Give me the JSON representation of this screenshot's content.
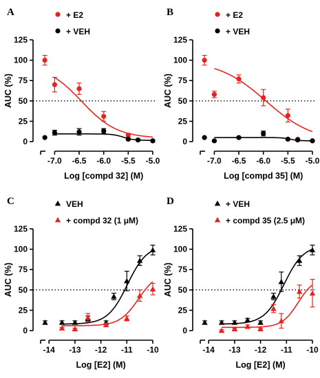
{
  "chart_data": [
    {
      "panel": "A",
      "type": "scatter",
      "title": "",
      "xlabel": "Log [compd 32] (M)",
      "ylabel": "AUC (%)",
      "xlim": [
        -7.3,
        -5.0
      ],
      "ylim": [
        -5,
        125
      ],
      "x_ticks": [
        "-7.0",
        "-6.5",
        "-6.0",
        "-5.5",
        "-5.0"
      ],
      "y_ticks": [
        "0",
        "25",
        "50",
        "75",
        "100",
        "125"
      ],
      "reference_line": 50,
      "legend_position": "top-left",
      "series": [
        {
          "name": "+ E2",
          "color": "#e8231f",
          "marker": "circle",
          "points": [
            {
              "x": -7.2,
              "y": 100,
              "err": 6
            },
            {
              "x": -7.0,
              "y": 70,
              "err": 9
            },
            {
              "x": -6.5,
              "y": 65,
              "err": 7
            },
            {
              "x": -6.0,
              "y": 31,
              "err": 6
            },
            {
              "x": -5.5,
              "y": 8,
              "err": 2
            },
            {
              "x": -5.3,
              "y": 2,
              "err": 1
            },
            {
              "x": -5.0,
              "y": 1,
              "err": 1
            }
          ],
          "fit": {
            "bottom": 4,
            "top": 95,
            "logEC50": -6.45,
            "hill": 1.2,
            "xstart": -7.0,
            "xend": -5.0
          }
        },
        {
          "name": "+ VEH",
          "color": "#000000",
          "marker": "circle",
          "points": [
            {
              "x": -7.2,
              "y": 5,
              "err": 0
            },
            {
              "x": -7.0,
              "y": 11,
              "err": 3
            },
            {
              "x": -6.5,
              "y": 12,
              "err": 4
            },
            {
              "x": -6.0,
              "y": 13,
              "err": 3
            },
            {
              "x": -5.5,
              "y": 3,
              "err": 1
            },
            {
              "x": -5.3,
              "y": 2,
              "err": 1
            },
            {
              "x": -5.0,
              "y": 1,
              "err": 1
            }
          ],
          "fit": {
            "bottom": 1.5,
            "top": 9.5,
            "logEC50": -5.6,
            "hill": 4,
            "xstart": -7.0,
            "xend": -5.0
          }
        }
      ]
    },
    {
      "panel": "B",
      "type": "scatter",
      "title": "",
      "xlabel": "Log [compd 35] (M)",
      "ylabel": "AUC (%)",
      "xlim": [
        -7.3,
        -5.0
      ],
      "ylim": [
        -5,
        125
      ],
      "x_ticks": [
        "-7.0",
        "-6.5",
        "-6.0",
        "-5.5",
        "-5.0"
      ],
      "y_ticks": [
        "0",
        "25",
        "50",
        "75",
        "100",
        "125"
      ],
      "reference_line": 50,
      "legend_position": "top-left",
      "series": [
        {
          "name": "+ E2",
          "color": "#e8231f",
          "marker": "circle",
          "points": [
            {
              "x": -7.2,
              "y": 100,
              "err": 6
            },
            {
              "x": -7.0,
              "y": 58,
              "err": 4
            },
            {
              "x": -6.5,
              "y": 77,
              "err": 5
            },
            {
              "x": -6.0,
              "y": 54,
              "err": 10
            },
            {
              "x": -5.5,
              "y": 32,
              "err": 8
            },
            {
              "x": -5.3,
              "y": 3,
              "err": 1
            },
            {
              "x": -5.0,
              "y": 1,
              "err": 1
            }
          ],
          "fit": {
            "bottom": 0,
            "top": 100,
            "logEC50": -5.95,
            "hill": 0.9,
            "xstart": -7.0,
            "xend": -5.0
          }
        },
        {
          "name": "+ VEH",
          "color": "#000000",
          "marker": "circle",
          "points": [
            {
              "x": -7.2,
              "y": 5,
              "err": 0
            },
            {
              "x": -7.0,
              "y": 1,
              "err": 1
            },
            {
              "x": -6.5,
              "y": 5,
              "err": 1
            },
            {
              "x": -6.0,
              "y": 10,
              "err": 3
            },
            {
              "x": -5.5,
              "y": 3,
              "err": 1
            },
            {
              "x": -5.3,
              "y": 2,
              "err": 1
            },
            {
              "x": -5.0,
              "y": 1,
              "err": 1
            }
          ],
          "fit": {
            "bottom": 1,
            "top": 5,
            "logEC50": -5.45,
            "hill": 5,
            "xstart": -7.0,
            "xend": -5.0
          }
        }
      ]
    },
    {
      "panel": "C",
      "type": "scatter",
      "title": "",
      "xlabel": "Log [E2] (M)",
      "ylabel": "AUC (%)",
      "xlim": [
        -14.35,
        -10
      ],
      "ylim": [
        -5,
        125
      ],
      "x_ticks": [
        "-14",
        "-13",
        "-12",
        "-11",
        "-10"
      ],
      "y_ticks": [
        "0",
        "25",
        "50",
        "75",
        "100",
        "125"
      ],
      "reference_line": 50,
      "legend_position": "top-left",
      "series": [
        {
          "name": "VEH",
          "color": "#000000",
          "marker": "triangle",
          "points": [
            {
              "x": -14.15,
              "y": 10,
              "err": 2
            },
            {
              "x": -13.5,
              "y": 10,
              "err": 2
            },
            {
              "x": -13.0,
              "y": 10,
              "err": 2
            },
            {
              "x": -12.5,
              "y": 15,
              "err": 3
            },
            {
              "x": -11.8,
              "y": 10,
              "err": 2
            },
            {
              "x": -11.5,
              "y": 42,
              "err": 4
            },
            {
              "x": -11.0,
              "y": 61,
              "err": 12
            },
            {
              "x": -10.5,
              "y": 86,
              "err": 6
            },
            {
              "x": -10.0,
              "y": 99,
              "err": 6
            }
          ],
          "fit": {
            "bottom": 8,
            "top": 105,
            "logEC50": -10.98,
            "hill": 1.15,
            "xstart": -13.5,
            "xend": -10.0
          }
        },
        {
          "name": "+ compd 32 (1 μM)",
          "color": "#e8231f",
          "marker": "triangle",
          "points": [
            {
              "x": -13.5,
              "y": 3,
              "err": 1
            },
            {
              "x": -13.0,
              "y": 2,
              "err": 1
            },
            {
              "x": -12.5,
              "y": 16,
              "err": 5
            },
            {
              "x": -11.8,
              "y": 7,
              "err": 2
            },
            {
              "x": -11.0,
              "y": 15,
              "err": 3
            },
            {
              "x": -10.5,
              "y": 43,
              "err": 7
            },
            {
              "x": -10.0,
              "y": 51,
              "err": 7
            }
          ],
          "fit": {
            "bottom": 6,
            "top": 72,
            "logEC50": -10.55,
            "hill": 1.2,
            "xstart": -13.5,
            "xend": -10.0
          }
        }
      ]
    },
    {
      "panel": "D",
      "type": "scatter",
      "title": "",
      "xlabel": "Log [E2] (M)",
      "ylabel": "AUC (%)",
      "xlim": [
        -14.35,
        -10
      ],
      "ylim": [
        -5,
        125
      ],
      "x_ticks": [
        "-14",
        "-13",
        "-12",
        "-11",
        "-10"
      ],
      "y_ticks": [
        "0",
        "25",
        "50",
        "75",
        "100",
        "125"
      ],
      "reference_line": 50,
      "legend_position": "top-left",
      "series": [
        {
          "name": "+ VEH",
          "color": "#000000",
          "marker": "triangle",
          "points": [
            {
              "x": -14.15,
              "y": 10,
              "err": 2
            },
            {
              "x": -13.5,
              "y": 10,
              "err": 2
            },
            {
              "x": -13.0,
              "y": 10,
              "err": 2
            },
            {
              "x": -12.5,
              "y": 13,
              "err": 2
            },
            {
              "x": -12.0,
              "y": 10,
              "err": 2
            },
            {
              "x": -11.5,
              "y": 42,
              "err": 4
            },
            {
              "x": -11.2,
              "y": 60,
              "err": 12
            },
            {
              "x": -10.5,
              "y": 86,
              "err": 6
            },
            {
              "x": -10.0,
              "y": 99,
              "err": 6
            }
          ],
          "fit": {
            "bottom": 8,
            "top": 105,
            "logEC50": -11.1,
            "hill": 1.15,
            "xstart": -13.5,
            "xend": -10.0
          }
        },
        {
          "name": "+ compd 35 (2.5 μM)",
          "color": "#e8231f",
          "marker": "triangle",
          "points": [
            {
              "x": -13.5,
              "y": 0,
              "err": 1
            },
            {
              "x": -13.0,
              "y": 2,
              "err": 1
            },
            {
              "x": -12.5,
              "y": 5,
              "err": 2
            },
            {
              "x": -12.0,
              "y": 2,
              "err": 1
            },
            {
              "x": -11.5,
              "y": 27,
              "err": 5
            },
            {
              "x": -11.2,
              "y": 12,
              "err": 9
            },
            {
              "x": -10.5,
              "y": 48,
              "err": 8
            },
            {
              "x": -10.0,
              "y": 46,
              "err": 17
            }
          ],
          "fit": {
            "bottom": 4,
            "top": 65,
            "logEC50": -10.55,
            "hill": 1.4,
            "xstart": -13.5,
            "xend": -10.0
          }
        }
      ]
    }
  ]
}
